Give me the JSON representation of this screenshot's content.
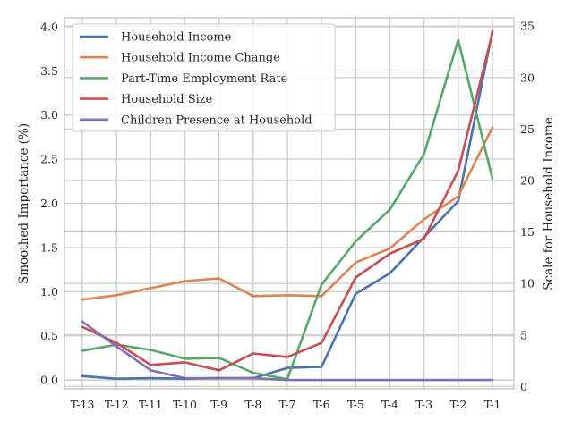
{
  "chart_data": {
    "type": "line",
    "xlabel": "",
    "ylabel": "Smoothed Importance (%)",
    "y2label": "Scale for Household Income",
    "categories": [
      "T-13",
      "T-12",
      "T-11",
      "T-10",
      "T-9",
      "T-8",
      "T-7",
      "T-6",
      "T-5",
      "T-4",
      "T-3",
      "T-2",
      "T-1"
    ],
    "ylim": [
      -0.1,
      4.1
    ],
    "y2lim": [
      -0.23,
      35.8
    ],
    "yticks": [
      "0.0",
      "0.5",
      "1.0",
      "1.5",
      "2.0",
      "2.5",
      "3.0",
      "3.5",
      "4.0"
    ],
    "y2ticks": [
      "0",
      "5",
      "10",
      "15",
      "20",
      "25",
      "30",
      "35"
    ],
    "grid": true,
    "legend_position": "top-left",
    "series": [
      {
        "name": "Household Income",
        "color": "#4c72b0",
        "axis": "right",
        "values": [
          1.0,
          0.75,
          0.8,
          0.75,
          0.8,
          0.8,
          1.8,
          1.9,
          9.0,
          11.0,
          14.5,
          18.0,
          34.5
        ]
      },
      {
        "name": "Household Income Change",
        "color": "#dd8452",
        "axis": "left",
        "values": [
          0.91,
          0.96,
          1.04,
          1.12,
          1.15,
          0.95,
          0.96,
          0.95,
          1.33,
          1.49,
          1.82,
          2.08,
          2.86
        ]
      },
      {
        "name": "Part-Time Employment Rate",
        "color": "#55a868",
        "axis": "left",
        "values": [
          0.33,
          0.4,
          0.34,
          0.24,
          0.25,
          0.08,
          0.01,
          1.08,
          1.57,
          1.93,
          2.56,
          3.85,
          2.28
        ]
      },
      {
        "name": "Household Size",
        "color": "#c44e52",
        "axis": "left",
        "values": [
          0.6,
          0.42,
          0.17,
          0.2,
          0.11,
          0.3,
          0.26,
          0.42,
          1.16,
          1.43,
          1.6,
          2.37,
          3.93
        ]
      },
      {
        "name": "Children Presence at Household",
        "color": "#8172b3",
        "axis": "left",
        "values": [
          0.66,
          0.38,
          0.11,
          0.02,
          0.02,
          0.02,
          0.0,
          0.0,
          0.0,
          0.0,
          0.0,
          0.0,
          0.0
        ]
      }
    ]
  }
}
